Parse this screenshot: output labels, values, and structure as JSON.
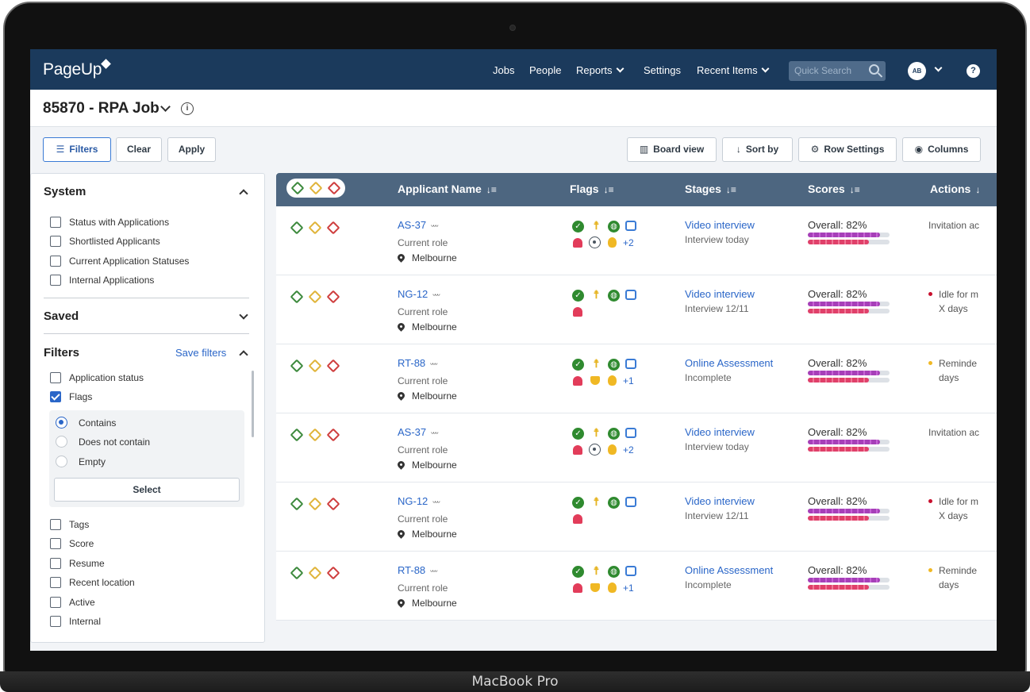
{
  "device_label": "MacBook Pro",
  "nav": {
    "logo": "PageUp",
    "items": [
      "Jobs",
      "People",
      "Reports",
      "Settings",
      "Recent Items"
    ],
    "search_placeholder": "Quick Search",
    "avatar_initials": "AB",
    "help": "?"
  },
  "job": {
    "title": "85870 - RPA Job",
    "info": "i"
  },
  "toolbar": {
    "filters": "Filters",
    "clear": "Clear",
    "apply": "Apply",
    "board_view": "Board view",
    "sort_by": "Sort by",
    "row_settings": "Row Settings",
    "columns": "Columns"
  },
  "sidebar": {
    "system_title": "System",
    "system_items": [
      "Status with Applications",
      "Shortlisted Applicants",
      "Current Application Statuses",
      "Internal Applications"
    ],
    "saved_title": "Saved",
    "filters_title": "Filters",
    "save_filters": "Save filters",
    "filter_items": [
      "Application status",
      "Flags"
    ],
    "flag_options": [
      "Contains",
      "Does not contain",
      "Empty"
    ],
    "select": "Select",
    "more_items": [
      "Tags",
      "Score",
      "Resume",
      "Recent location",
      "Active",
      "Internal"
    ]
  },
  "table": {
    "headers": [
      "Applicant Name",
      "Flags",
      "Stages",
      "Scores",
      "Actions"
    ],
    "rows": [
      {
        "name": "AS-37",
        "role": "Current role",
        "location": "Melbourne",
        "extra": "+2",
        "variant": "a",
        "stage": "Video interview",
        "stage_sub": "Interview today",
        "score": "Overall: 82%",
        "action_line1": "Invitation ac",
        "action_line2": "",
        "action_dot": ""
      },
      {
        "name": "NG-12",
        "role": "Current role",
        "location": "Melbourne",
        "extra": "",
        "variant": "b",
        "stage": "Video interview",
        "stage_sub": "Interview 12/11",
        "score": "Overall: 82%",
        "action_line1": "Idle for m",
        "action_line2": "X days",
        "action_dot": "red"
      },
      {
        "name": "RT-88",
        "role": "Current role",
        "location": "Melbourne",
        "extra": "+1",
        "variant": "c",
        "stage": "Online Assessment",
        "stage_sub": "Incomplete",
        "score": "Overall: 82%",
        "action_line1": "Reminde",
        "action_line2": "days",
        "action_dot": "yellow"
      },
      {
        "name": "AS-37",
        "role": "Current role",
        "location": "Melbourne",
        "extra": "+2",
        "variant": "a",
        "stage": "Video interview",
        "stage_sub": "Interview today",
        "score": "Overall: 82%",
        "action_line1": "Invitation ac",
        "action_line2": "",
        "action_dot": ""
      },
      {
        "name": "NG-12",
        "role": "Current role",
        "location": "Melbourne",
        "extra": "",
        "variant": "b",
        "stage": "Video interview",
        "stage_sub": "Interview 12/11",
        "score": "Overall: 82%",
        "action_line1": "Idle for m",
        "action_line2": "X days",
        "action_dot": "red"
      },
      {
        "name": "RT-88",
        "role": "Current role",
        "location": "Melbourne",
        "extra": "+1",
        "variant": "c",
        "stage": "Online Assessment",
        "stage_sub": "Incomplete",
        "score": "Overall: 82%",
        "action_line1": "Reminde",
        "action_line2": "days",
        "action_dot": "yellow"
      }
    ],
    "score_bars": {
      "purple_fraction": 0.88,
      "pink_fraction": 0.75
    }
  },
  "colors": {
    "nav_bg": "#1b3a5c",
    "table_header": "#4d6680",
    "link": "#2a66c8"
  }
}
